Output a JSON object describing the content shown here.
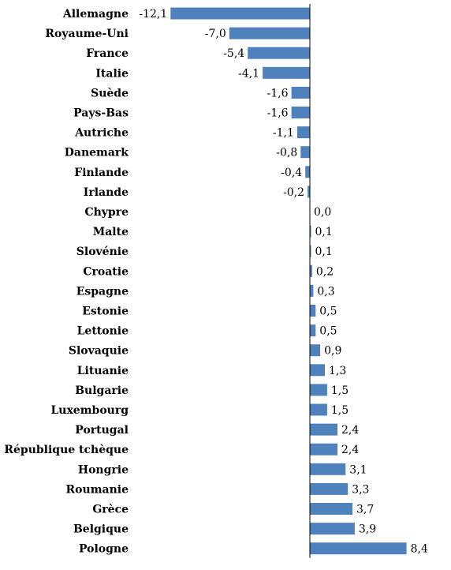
{
  "chart_data": {
    "type": "bar",
    "orientation": "horizontal",
    "categories": [
      "Allemagne",
      "Royaume-Uni",
      "France",
      "Italie",
      "Suède",
      "Pays-Bas",
      "Autriche",
      "Danemark",
      "Finlande",
      "Irlande",
      "Chypre",
      "Malte",
      "Slovénie",
      "Croatie",
      "Espagne",
      "Estonie",
      "Lettonie",
      "Slovaquie",
      "Lituanie",
      "Bulgarie",
      "Luxembourg",
      "Portugal",
      "République tchèque",
      "Hongrie",
      "Roumanie",
      "Grèce",
      "Belgique",
      "Pologne"
    ],
    "values": [
      -12.1,
      -7.0,
      -5.4,
      -4.1,
      -1.6,
      -1.6,
      -1.1,
      -0.8,
      -0.4,
      -0.2,
      0.0,
      0.1,
      0.1,
      0.2,
      0.3,
      0.5,
      0.5,
      0.9,
      1.3,
      1.5,
      1.5,
      2.4,
      2.4,
      3.1,
      3.3,
      3.7,
      3.9,
      8.4
    ],
    "value_labels": [
      "-12,1",
      "-7,0",
      "-5,4",
      "-4,1",
      "-1,6",
      "-1,6",
      "-1,1",
      "-0,8",
      "-0,4",
      "-0,2",
      "0,0",
      "0,1",
      "0,1",
      "0,2",
      "0,3",
      "0,5",
      "0,5",
      "0,9",
      "1,3",
      "1,5",
      "1,5",
      "2,4",
      "2,4",
      "3,1",
      "3,3",
      "3,7",
      "3,9",
      "8,4"
    ],
    "bar_color": "#4f81bd",
    "grid": false,
    "legend": "none",
    "title": "",
    "xlabel": "",
    "ylabel": ""
  }
}
